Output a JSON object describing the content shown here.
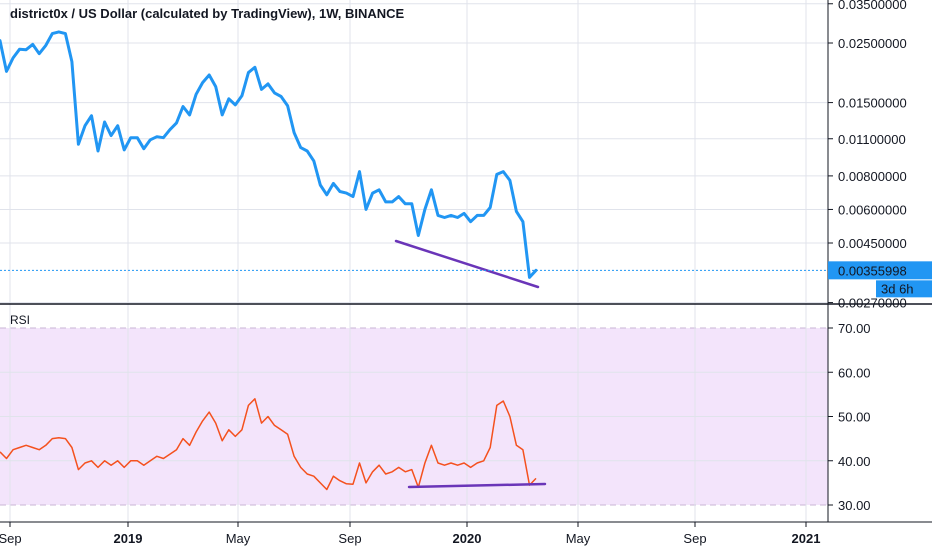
{
  "header": {
    "title": "district0x / US Dollar (calculated by TradingView), 1W, BINANCE"
  },
  "rsi_pane": {
    "label": "RSI"
  },
  "colors": {
    "price_line": "#2196f3",
    "rsi_line": "#f4511e",
    "trendline": "#6a35b8",
    "rsi_band_fill": "#f3e4fb",
    "grid": "#e0e3eb",
    "price_label_bg": "#2196f3"
  },
  "price_badge": {
    "value": "0.00355998",
    "countdown": "3d 6h"
  },
  "chart_data": [
    {
      "type": "line",
      "title": "district0x / US Dollar (calculated by TradingView), 1W, BINANCE",
      "scale": "log",
      "y_ticks": [
        "0.03500000",
        "0.02500000",
        "0.01500000",
        "0.01100000",
        "0.00800000",
        "0.00600000",
        "0.00450000",
        "0.00270000"
      ],
      "ylim": [
        0.0027,
        0.035
      ],
      "x_ticks": [
        "Sep",
        "2019",
        "May",
        "Sep",
        "2020",
        "May",
        "Sep",
        "2021"
      ],
      "grid": true,
      "series": [
        {
          "values": [
            0.0255,
            0.0196,
            0.022,
            0.0237,
            0.0236,
            0.0247,
            0.0228,
            0.0245,
            0.0271,
            0.0275,
            0.0271,
            0.0213,
            0.0105,
            0.0123,
            0.0134,
            0.0099,
            0.0127,
            0.0113,
            0.0123,
            0.01,
            0.0111,
            0.0111,
            0.0101,
            0.0109,
            0.0112,
            0.0111,
            0.0119,
            0.0126,
            0.0145,
            0.0135,
            0.0161,
            0.0178,
            0.019,
            0.0172,
            0.0135,
            0.0155,
            0.0147,
            0.0159,
            0.0194,
            0.0203,
            0.0168,
            0.0176,
            0.0163,
            0.0158,
            0.0146,
            0.0116,
            0.0102,
            0.0099,
            0.0091,
            0.0074,
            0.0068,
            0.0075,
            0.007,
            0.0069,
            0.0067,
            0.0083,
            0.006,
            0.0069,
            0.0071,
            0.0064,
            0.0064,
            0.0067,
            0.0063,
            0.0063,
            0.0048,
            0.006,
            0.0071,
            0.0057,
            0.0056,
            0.0057,
            0.0056,
            0.0058,
            0.0054,
            0.0057,
            0.0057,
            0.0061,
            0.0081,
            0.0083,
            0.0077,
            0.0059,
            0.0054,
            0.00335,
            0.00356
          ]
        }
      ]
    },
    {
      "type": "line",
      "title": "RSI",
      "y_ticks": [
        "70.00",
        "60.00",
        "50.00",
        "40.00",
        "30.00"
      ],
      "ylim": [
        28,
        75
      ],
      "band": [
        30,
        70
      ],
      "grid": true,
      "series": [
        {
          "values": [
            42.0,
            40.5,
            42.5,
            43.0,
            43.5,
            43.0,
            42.5,
            43.5,
            45.0,
            45.2,
            45.0,
            43.0,
            38.0,
            39.5,
            40.0,
            38.5,
            40.0,
            39.0,
            40.0,
            38.5,
            40.0,
            40.0,
            39.0,
            40.0,
            41.0,
            40.5,
            41.5,
            42.5,
            45.0,
            43.5,
            46.5,
            49.0,
            51.0,
            48.5,
            44.5,
            47.0,
            45.5,
            47.0,
            52.5,
            54.0,
            48.5,
            50.0,
            48.0,
            47.0,
            46.0,
            41.0,
            38.5,
            37.0,
            36.5,
            35.0,
            33.5,
            36.5,
            35.5,
            34.8,
            34.7,
            39.5,
            35.0,
            37.5,
            39.0,
            37.0,
            37.5,
            38.5,
            37.5,
            38.0,
            34.0,
            39.5,
            43.5,
            39.5,
            39.0,
            39.5,
            39.0,
            39.5,
            38.5,
            39.5,
            40.0,
            43.0,
            52.5,
            53.5,
            50.0,
            43.5,
            42.5,
            34.5,
            36.0
          ]
        }
      ]
    }
  ]
}
